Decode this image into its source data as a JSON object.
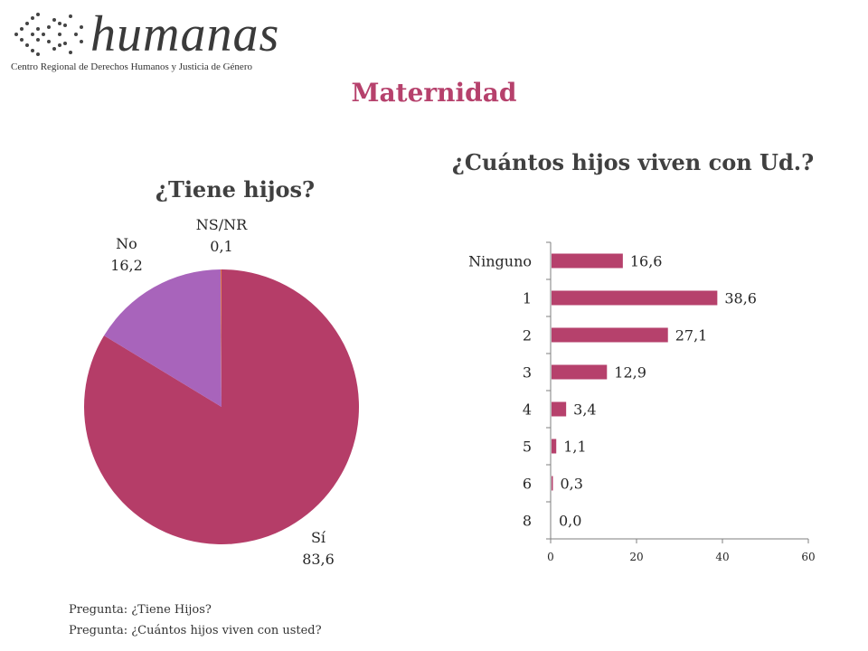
{
  "logo": {
    "word": "humanas",
    "subtitle": "Centro Regional de Derechos Humanos y Justicia de Género"
  },
  "title": "Maternidad",
  "colors": {
    "title": "#b6416c",
    "bar": "#b6416c",
    "pie_si": "#b53d68",
    "pie_no": "#a864bb",
    "pie_nsnr": "#e07b39"
  },
  "chart_data": [
    {
      "type": "pie",
      "title": "¿Tiene hijos?",
      "categories": [
        "Sí",
        "No",
        "NS/NR"
      ],
      "values": [
        83.6,
        16.2,
        0.1
      ],
      "value_labels": [
        "83,6",
        "16,2",
        "0,1"
      ]
    },
    {
      "type": "bar",
      "orientation": "horizontal",
      "title": "¿Cuántos hijos viven con Ud.?",
      "categories": [
        "Ninguno",
        "1",
        "2",
        "3",
        "4",
        "5",
        "6",
        "8"
      ],
      "values": [
        16.6,
        38.6,
        27.1,
        12.9,
        3.4,
        1.1,
        0.3,
        0.0
      ],
      "value_labels": [
        "16,6",
        "38,6",
        "27,1",
        "12,9",
        "3,4",
        "1,1",
        "0,3",
        "0,0"
      ],
      "xlim": [
        0,
        60
      ],
      "xticks": [
        "0",
        "20",
        "40",
        "60"
      ],
      "grid": false,
      "legend": "none"
    }
  ],
  "notes": [
    "Pregunta: ¿Tiene Hijos?",
    "Pregunta: ¿Cuántos hijos viven con usted?"
  ]
}
